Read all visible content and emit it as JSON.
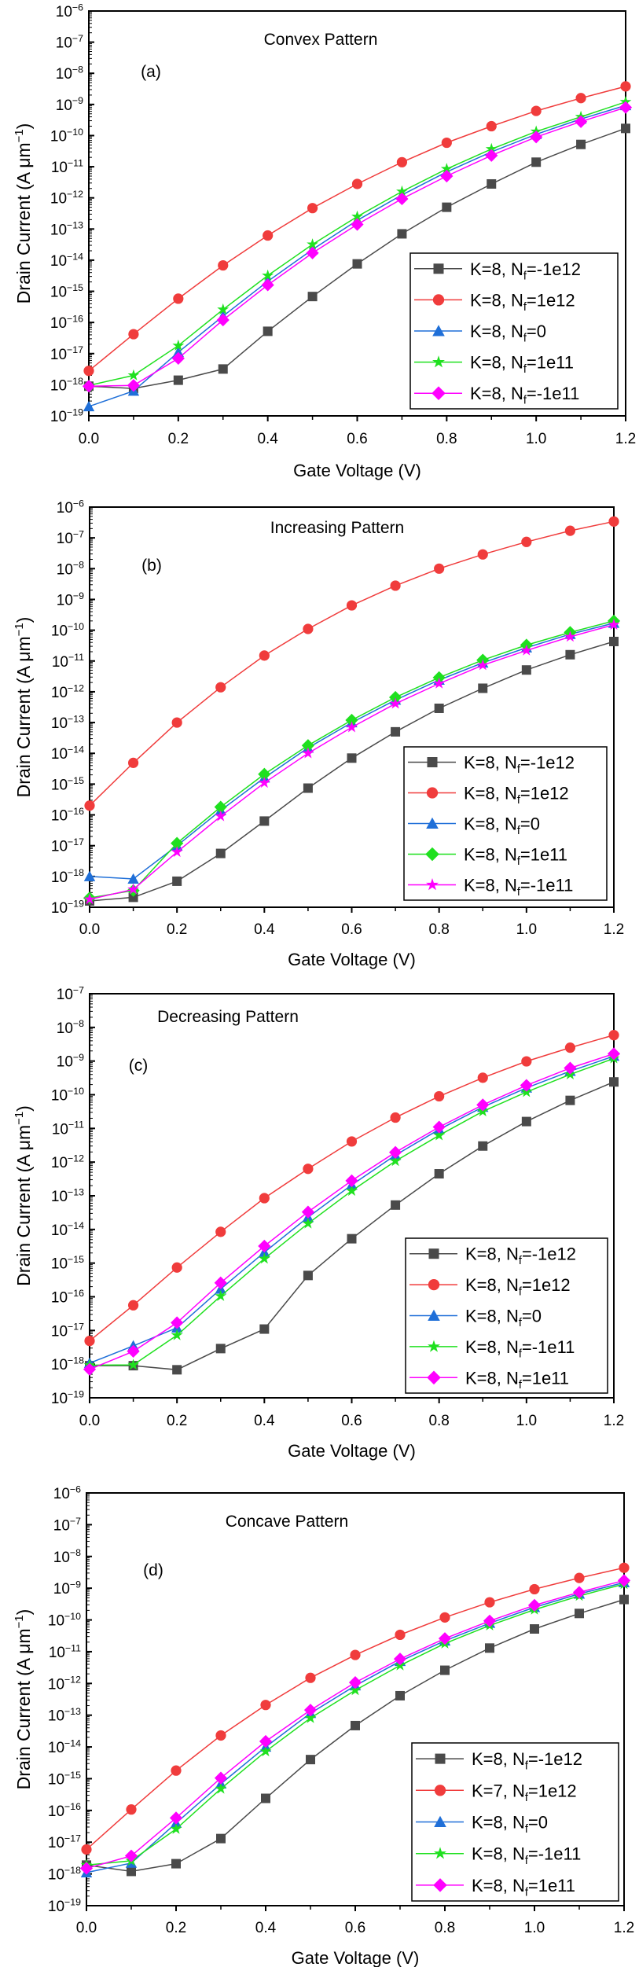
{
  "colors": {
    "black": "#4a4a4a",
    "red": "#f03c3c",
    "blue": "#1f6fd8",
    "green": "#1fe01f",
    "magenta": "#ff00ff"
  },
  "chart_data": [
    {
      "type": "line",
      "panel_label": "(a)",
      "title": "Convex Pattern",
      "xlabel": "Gate Voltage (V)",
      "ylabel": "Drain Current (A μm^-1)",
      "yscale": "log",
      "xlim": [
        0,
        1.2
      ],
      "ylim": [
        1e-19,
        1e-06
      ],
      "xticks": [
        "0.0",
        "0.2",
        "0.4",
        "0.6",
        "0.8",
        "1.0",
        "1.2"
      ],
      "yticks": [
        -19,
        -18,
        -17,
        -16,
        -15,
        -14,
        -13,
        -12,
        -11,
        -10,
        -9,
        -8,
        -7,
        -6
      ],
      "legend_position": "bottom-right",
      "x": [
        0,
        0.1,
        0.2,
        0.3,
        0.4,
        0.5,
        0.6,
        0.7,
        0.8,
        0.9,
        1.0,
        1.1,
        1.2
      ],
      "series": [
        {
          "name": "K=8, N_f=-1e12",
          "color": "black",
          "marker": "square",
          "values": [
            9e-19,
            7.6e-19,
            1.4e-18,
            3.2e-18,
            5.2e-17,
            6.8e-16,
            7.6e-15,
            7e-14,
            5e-13,
            2.8e-12,
            1.4e-11,
            5.2e-11,
            1.7e-10
          ]
        },
        {
          "name": "K=8, N_f=1e12",
          "color": "red",
          "marker": "circle",
          "values": [
            2.8e-18,
            4.2e-17,
            5.8e-16,
            6.8e-15,
            6.2e-14,
            4.7e-13,
            2.8e-12,
            1.4e-11,
            5.9e-11,
            2e-10,
            6.2e-10,
            1.6e-09,
            3.8e-09
          ]
        },
        {
          "name": "K=8, N_f=0",
          "color": "blue",
          "marker": "triangle",
          "values": [
            2e-19,
            6.3e-19,
            1.1e-17,
            1.6e-16,
            2.1e-15,
            2.2e-14,
            1.9e-13,
            1.25e-12,
            6.8e-12,
            3e-11,
            1.1e-10,
            3.4e-10,
            9.3e-10
          ]
        },
        {
          "name": "K=8, N_f=1e11",
          "color": "green",
          "marker": "star",
          "values": [
            9.5e-19,
            2e-18,
            1.8e-17,
            2.6e-16,
            3.2e-15,
            3.2e-14,
            2.5e-13,
            1.6e-12,
            8.5e-12,
            3.7e-11,
            1.35e-10,
            4e-10,
            1.2e-09
          ]
        },
        {
          "name": "K=8, N_f=-1e11",
          "color": "magenta",
          "marker": "diamond",
          "values": [
            9e-19,
            9.5e-19,
            7e-18,
            1.2e-16,
            1.6e-15,
            1.7e-14,
            1.4e-13,
            9.3e-13,
            5e-12,
            2.3e-11,
            9e-11,
            2.8e-10,
            8e-10
          ]
        }
      ]
    },
    {
      "type": "line",
      "panel_label": "(b)",
      "title": "Increasing Pattern",
      "xlabel": "Gate Voltage (V)",
      "ylabel": "Drain Current (A μm^-1)",
      "yscale": "log",
      "xlim": [
        0,
        1.2
      ],
      "ylim": [
        1e-19,
        1e-06
      ],
      "xticks": [
        "0.0",
        "0.2",
        "0.4",
        "0.6",
        "0.8",
        "1.0",
        "1.2"
      ],
      "yticks": [
        -19,
        -18,
        -17,
        -16,
        -15,
        -14,
        -13,
        -12,
        -11,
        -10,
        -9,
        -8,
        -7,
        -6
      ],
      "legend_position": "bottom-right",
      "x": [
        0,
        0.1,
        0.2,
        0.3,
        0.4,
        0.5,
        0.6,
        0.7,
        0.8,
        0.9,
        1.0,
        1.1,
        1.2
      ],
      "series": [
        {
          "name": "K=8, N_f=-1e12",
          "color": "black",
          "marker": "square",
          "values": [
            1.6e-19,
            2.1e-19,
            7e-19,
            5.6e-18,
            6.3e-17,
            7.4e-16,
            7e-15,
            5e-14,
            2.9e-13,
            1.3e-12,
            5.1e-12,
            1.6e-11,
            4.3e-11
          ]
        },
        {
          "name": "K=8, N_f=1e12",
          "color": "red",
          "marker": "circle",
          "values": [
            2e-16,
            4.9e-15,
            1e-13,
            1.4e-12,
            1.5e-11,
            1.1e-10,
            6.4e-10,
            2.8e-09,
            1e-08,
            2.9e-08,
            7.4e-08,
            1.7e-07,
            3.4e-07
          ]
        },
        {
          "name": "K=8, N_f=0",
          "color": "blue",
          "marker": "triangle",
          "values": [
            1e-18,
            8.3e-19,
            1e-17,
            1.4e-16,
            1.6e-15,
            1.5e-14,
            1e-13,
            5.4e-13,
            2.4e-12,
            8.7e-12,
            2.7e-11,
            7.4e-11,
            1.7e-10
          ]
        },
        {
          "name": "K=8, N_f=1e11",
          "color": "green",
          "marker": "diamond",
          "values": [
            2e-19,
            3.5e-19,
            1.2e-17,
            1.8e-16,
            2.1e-15,
            1.8e-14,
            1.2e-13,
            6.6e-13,
            2.9e-12,
            1.07e-11,
            3.3e-11,
            8.5e-11,
            2e-10
          ]
        },
        {
          "name": "K=8, N_f=-1e11",
          "color": "magenta",
          "marker": "star",
          "values": [
            1.8e-19,
            3.8e-19,
            6.2e-18,
            9e-17,
            1.1e-15,
            1e-14,
            7e-14,
            4.1e-13,
            1.85e-12,
            7.3e-12,
            2.2e-11,
            6.1e-11,
            1.5e-10
          ]
        }
      ]
    },
    {
      "type": "line",
      "panel_label": "(c)",
      "title": "Decreasing Pattern",
      "xlabel": "Gate Voltage (V)",
      "ylabel": "Drain Current (A μm^-1)",
      "yscale": "log",
      "xlim": [
        0,
        1.2
      ],
      "ylim": [
        1e-19,
        1e-07
      ],
      "xticks": [
        "0.0",
        "0.2",
        "0.4",
        "0.6",
        "0.8",
        "1.0",
        "1.2"
      ],
      "yticks": [
        -19,
        -18,
        -17,
        -16,
        -15,
        -14,
        -13,
        -12,
        -11,
        -10,
        -9,
        -8,
        -7
      ],
      "legend_position": "bottom-right",
      "x": [
        0,
        0.1,
        0.2,
        0.3,
        0.4,
        0.5,
        0.6,
        0.7,
        0.8,
        0.9,
        1.0,
        1.1,
        1.2
      ],
      "series": [
        {
          "name": "K=8, N_f=-1e12",
          "color": "black",
          "marker": "square",
          "values": [
            9e-19,
            9e-19,
            6.8e-19,
            2.9e-18,
            1.1e-17,
            4.3e-16,
            5.3e-15,
            5.3e-14,
            4.5e-13,
            3e-12,
            1.6e-11,
            6.8e-11,
            2.4e-10
          ]
        },
        {
          "name": "K=8, N_f=1e12",
          "color": "red",
          "marker": "circle",
          "values": [
            4.9e-18,
            5.6e-17,
            7.4e-16,
            8.5e-15,
            8.5e-14,
            6.3e-13,
            4.1e-12,
            2.1e-11,
            9e-11,
            3.2e-10,
            9.8e-10,
            2.5e-09,
            5.9e-09
          ]
        },
        {
          "name": "K=8, N_f=0",
          "color": "blue",
          "marker": "triangle",
          "values": [
            1.07e-18,
            3.5e-18,
            1.2e-17,
            1.7e-16,
            2.1e-15,
            2.3e-14,
            2.1e-13,
            1.6e-12,
            9.3e-12,
            4.3e-11,
            1.6e-10,
            5e-10,
            1.4e-09
          ]
        },
        {
          "name": "K=8, N_f=-1e11",
          "color": "green",
          "marker": "star",
          "values": [
            9.3e-19,
            9.5e-19,
            7.2e-18,
            1.05e-16,
            1.35e-15,
            1.5e-14,
            1.4e-13,
            1.07e-12,
            6.2e-12,
            3.2e-11,
            1.2e-10,
            4e-10,
            1.2e-09
          ]
        },
        {
          "name": "K=8, N_f=1e11",
          "color": "magenta",
          "marker": "diamond",
          "values": [
            7e-19,
            2.4e-18,
            1.7e-17,
            2.6e-16,
            3.2e-15,
            3.3e-14,
            2.8e-13,
            1.95e-12,
            1.1e-11,
            5e-11,
            1.9e-10,
            6.2e-10,
            1.65e-09
          ]
        }
      ]
    },
    {
      "type": "line",
      "panel_label": "(d)",
      "title": "Concave Pattern",
      "xlabel": "Gate Voltage (V)",
      "ylabel": "Drain Current (A μm^-1)",
      "yscale": "log",
      "xlim": [
        0,
        1.2
      ],
      "ylim": [
        1e-19,
        1e-06
      ],
      "xticks": [
        "0.0",
        "0.2",
        "0.4",
        "0.6",
        "0.8",
        "1.0",
        "1.2"
      ],
      "yticks": [
        -19,
        -18,
        -17,
        -16,
        -15,
        -14,
        -13,
        -12,
        -11,
        -10,
        -9,
        -8,
        -7,
        -6
      ],
      "legend_position": "bottom-right",
      "x": [
        0,
        0.1,
        0.2,
        0.3,
        0.4,
        0.5,
        0.6,
        0.7,
        0.8,
        0.9,
        1.0,
        1.1,
        1.2
      ],
      "series": [
        {
          "name": "K=8, N_f=-1e12",
          "color": "black",
          "marker": "square",
          "values": [
            1.9e-18,
            1.2e-18,
            2.1e-18,
            1.3e-17,
            2.4e-16,
            4e-15,
            4.7e-14,
            4.1e-13,
            2.6e-12,
            1.3e-11,
            5.2e-11,
            1.6e-10,
            4.4e-10
          ]
        },
        {
          "name": "K=7, N_f=1e12",
          "color": "red",
          "marker": "circle",
          "values": [
            5.9e-18,
            1.07e-16,
            1.8e-15,
            2.3e-14,
            2.1e-13,
            1.5e-12,
            7.9e-12,
            3.4e-11,
            1.2e-10,
            3.6e-10,
            9.3e-10,
            2.1e-09,
            4.4e-09
          ]
        },
        {
          "name": "K=8, N_f=0",
          "color": "blue",
          "marker": "triangle",
          "values": [
            1.1e-18,
            2.2e-18,
            4e-17,
            6.9e-16,
            1e-14,
            1.15e-13,
            8.5e-13,
            5e-12,
            2.2e-11,
            7.9e-11,
            2.5e-10,
            6.6e-10,
            1.5e-09
          ]
        },
        {
          "name": "K=8, N_f=-1e11",
          "color": "green",
          "marker": "star",
          "values": [
            1.9e-18,
            2.6e-18,
            2.6e-17,
            4.8e-16,
            7.2e-15,
            8.1e-14,
            6.1e-13,
            3.7e-12,
            1.8e-11,
            6.7e-11,
            2.1e-10,
            5.7e-10,
            1.35e-09
          ]
        },
        {
          "name": "K=8, N_f=1e11",
          "color": "magenta",
          "marker": "diamond",
          "values": [
            1.5e-18,
            3.7e-18,
            5.8e-17,
            1.05e-15,
            1.5e-14,
            1.45e-13,
            1.07e-12,
            5.9e-12,
            2.6e-11,
            9.3e-11,
            2.9e-10,
            7.4e-10,
            1.75e-09
          ]
        }
      ]
    }
  ]
}
